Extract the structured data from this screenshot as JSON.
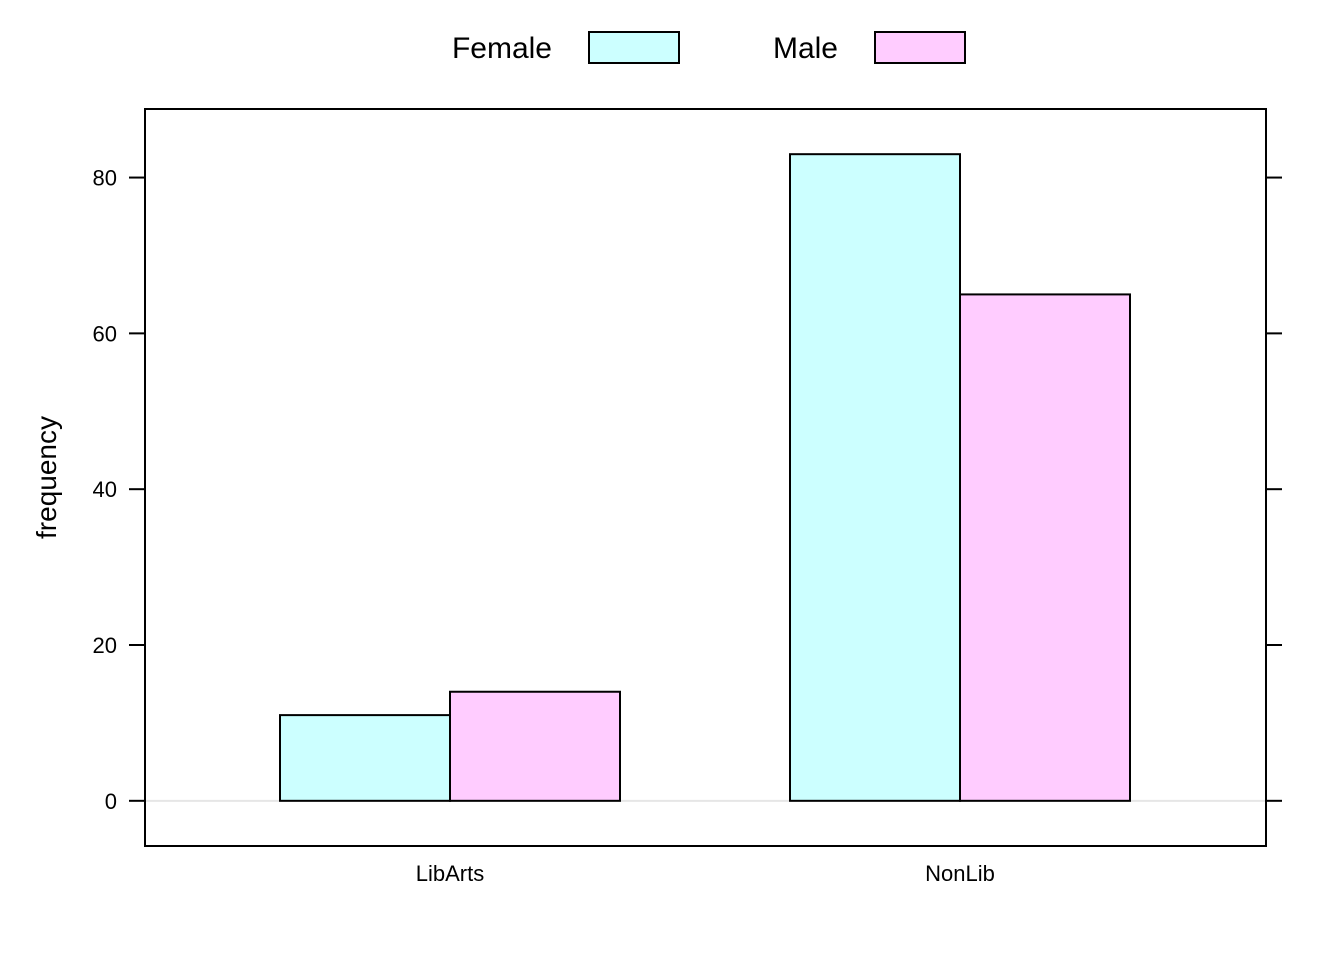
{
  "chart_data": {
    "type": "bar",
    "categories": [
      "LibArts",
      "NonLib"
    ],
    "series": [
      {
        "name": "Female",
        "values": [
          11,
          83
        ],
        "color": "#ccffff"
      },
      {
        "name": "Male",
        "values": [
          14,
          65
        ],
        "color": "#ffccff"
      }
    ],
    "xlabel": "",
    "ylabel": "frequency",
    "ylim": [
      -5.8,
      88.8
    ],
    "yticks": [
      0,
      20,
      40,
      60,
      80
    ],
    "reference_line": 0,
    "reference_line_color": "#e6e6e6",
    "legend_position": "top",
    "grid": false
  }
}
